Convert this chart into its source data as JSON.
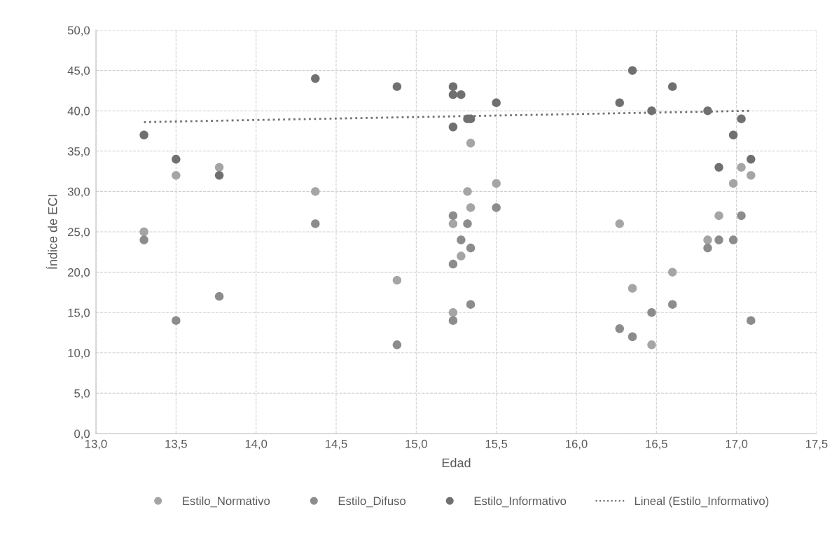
{
  "chart_data": {
    "type": "scatter",
    "xlabel": "Edad",
    "ylabel": "Índice de ECI",
    "marker": "circle",
    "grid": true,
    "legend": "bottom",
    "xlim": [
      13,
      17.5
    ],
    "ylim": [
      0,
      50
    ],
    "xticks": [
      {
        "value": 13,
        "label": "13,0"
      },
      {
        "value": 13.5,
        "label": "13,5"
      },
      {
        "value": 14,
        "label": "14,0"
      },
      {
        "value": 14.5,
        "label": "14,5"
      },
      {
        "value": 15,
        "label": "15,0"
      },
      {
        "value": 15.5,
        "label": "15,5"
      },
      {
        "value": 16,
        "label": "16,0"
      },
      {
        "value": 16.5,
        "label": "16,5"
      },
      {
        "value": 17,
        "label": "17,0"
      },
      {
        "value": 17.5,
        "label": "17,5"
      }
    ],
    "yticks": [
      {
        "value": 0,
        "label": "0,0"
      },
      {
        "value": 5,
        "label": "5,0"
      },
      {
        "value": 10,
        "label": "10,0"
      },
      {
        "value": 15,
        "label": "15,0"
      },
      {
        "value": 20,
        "label": "20,0"
      },
      {
        "value": 25,
        "label": "25,0"
      },
      {
        "value": 30,
        "label": "30,0"
      },
      {
        "value": 35,
        "label": "35,0"
      },
      {
        "value": 40,
        "label": "40,0"
      },
      {
        "value": 45,
        "label": "45,0"
      },
      {
        "value": 50,
        "label": "50,0"
      }
    ],
    "series": [
      {
        "name": "Estilo_Normativo",
        "color": "#a5a5a5",
        "x": [
          13.3,
          13.5,
          13.77,
          14.37,
          14.88,
          15.23,
          15.23,
          15.28,
          15.32,
          15.34,
          15.34,
          15.5,
          16.27,
          16.35,
          16.47,
          16.6,
          16.82,
          16.89,
          16.98,
          17.03,
          17.09
        ],
        "values": [
          25,
          32,
          33,
          30,
          19,
          26,
          15,
          22,
          30,
          36,
          28,
          31,
          26,
          18,
          11,
          20,
          24,
          27,
          31,
          33,
          32
        ]
      },
      {
        "name": "Estilo_Difuso",
        "color": "#8c8c8c",
        "x": [
          13.3,
          13.5,
          13.77,
          14.37,
          14.88,
          15.23,
          15.23,
          15.23,
          15.28,
          15.32,
          15.34,
          15.34,
          15.5,
          16.27,
          16.35,
          16.47,
          16.6,
          16.82,
          16.89,
          16.98,
          17.03,
          17.09
        ],
        "values": [
          24,
          14,
          17,
          26,
          11,
          27,
          21,
          14,
          24,
          26,
          23,
          16,
          28,
          13,
          12,
          15,
          16,
          23,
          24,
          24,
          27,
          14
        ]
      },
      {
        "name": "Estilo_Informativo",
        "color": "#707070",
        "x": [
          13.3,
          13.5,
          13.77,
          14.37,
          14.88,
          15.23,
          15.23,
          15.23,
          15.28,
          15.32,
          15.34,
          15.5,
          16.27,
          16.35,
          16.47,
          16.6,
          16.82,
          16.89,
          16.98,
          17.03,
          17.09
        ],
        "values": [
          37,
          34,
          32,
          44,
          43,
          43,
          42,
          38,
          42,
          39,
          39,
          41,
          41,
          45,
          40,
          43,
          40,
          33,
          37,
          39,
          34
        ]
      },
      {
        "name": "Lineal (Estilo_Informativo)",
        "type": "line",
        "line_style": "dotted",
        "marker": "none",
        "color": "#707070",
        "x": [
          13.3,
          17.09
        ],
        "values": [
          38.6,
          40.0
        ]
      }
    ]
  }
}
